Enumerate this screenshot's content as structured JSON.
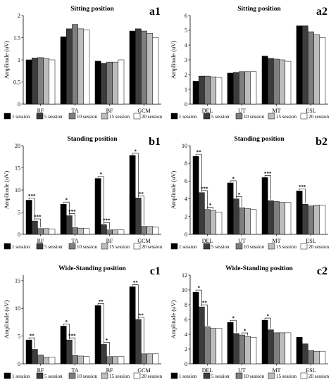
{
  "series_colors": [
    "#000000",
    "#3c3c3c",
    "#7f7f7f",
    "#bdbdbd",
    "#ffffff"
  ],
  "chart_data": [
    {
      "id": "a1",
      "type": "bar",
      "panel_label": "a1",
      "title": "Sitting position",
      "ylabel": "Amplitude (uV)",
      "ylim": [
        0,
        2
      ],
      "yticks": [
        0,
        0.5,
        1,
        1.5,
        2
      ],
      "ytick_labels": [
        "0",
        "0.5",
        "1",
        "1.5",
        "2"
      ],
      "categories": [
        "RF",
        "TA",
        "BF",
        "GCM"
      ],
      "series": [
        {
          "name": "1 session",
          "values": [
            1.0,
            1.52,
            0.97,
            1.65
          ]
        },
        {
          "name": "5 session",
          "values": [
            1.04,
            1.7,
            0.92,
            1.7
          ]
        },
        {
          "name": "10 session",
          "values": [
            1.05,
            1.8,
            0.95,
            1.65
          ]
        },
        {
          "name": "15 session",
          "values": [
            1.03,
            1.7,
            0.95,
            1.6
          ]
        },
        {
          "name": "20 session",
          "values": [
            1.0,
            1.67,
            1.0,
            1.5
          ]
        }
      ],
      "annotations": [],
      "legend": "bottom"
    },
    {
      "id": "a2",
      "type": "bar",
      "panel_label": "a2",
      "title": "Sitting position",
      "ylabel": "Amplitude (uV)",
      "ylim": [
        0,
        6
      ],
      "yticks": [
        0,
        1,
        2,
        3,
        4,
        5,
        6
      ],
      "ytick_labels": [
        "0",
        "1",
        "2",
        "3",
        "4",
        "5",
        "6"
      ],
      "categories": [
        "DEL",
        "UT",
        "MT",
        "ESL"
      ],
      "series": [
        {
          "name": "1 session",
          "values": [
            1.55,
            2.1,
            3.25,
            5.3
          ]
        },
        {
          "name": "5 session",
          "values": [
            1.9,
            2.15,
            3.1,
            5.3
          ]
        },
        {
          "name": "10 session",
          "values": [
            1.9,
            2.2,
            3.05,
            4.9
          ]
        },
        {
          "name": "15 session",
          "values": [
            1.85,
            2.2,
            3.0,
            4.7
          ]
        },
        {
          "name": "20 session",
          "values": [
            1.8,
            2.2,
            2.9,
            4.5
          ]
        }
      ],
      "annotations": [],
      "legend": "bottom"
    },
    {
      "id": "b1",
      "type": "bar",
      "panel_label": "b1",
      "title": "Standing position",
      "ylabel": "Amplitude (uV)",
      "ylim": [
        0,
        20
      ],
      "yticks": [
        0,
        5,
        10,
        15,
        20
      ],
      "ytick_labels": [
        "0",
        "5",
        "10",
        "15",
        "20"
      ],
      "categories": [
        "RF",
        "TA",
        "BF",
        "GCM"
      ],
      "series": [
        {
          "name": "1 session",
          "values": [
            7.7,
            6.8,
            12.6,
            17.8
          ]
        },
        {
          "name": "5 session",
          "values": [
            3.0,
            4.2,
            2.2,
            8.2
          ]
        },
        {
          "name": "10 session",
          "values": [
            1.3,
            1.5,
            1.0,
            1.8
          ]
        },
        {
          "name": "15 session",
          "values": [
            1.3,
            1.4,
            1.0,
            1.8
          ]
        },
        {
          "name": "20 session",
          "values": [
            1.2,
            1.3,
            1.0,
            1.6
          ]
        }
      ],
      "annotations": [
        {
          "category": 0,
          "from": 0,
          "to": 1,
          "label": "***"
        },
        {
          "category": 0,
          "from": 1,
          "to": 2,
          "label": "***"
        },
        {
          "category": 1,
          "from": 0,
          "to": 1,
          "label": "*"
        },
        {
          "category": 1,
          "from": 1,
          "to": 2,
          "label": "***"
        },
        {
          "category": 2,
          "from": 0,
          "to": 1,
          "label": "*"
        },
        {
          "category": 2,
          "from": 1,
          "to": 2,
          "label": "***"
        },
        {
          "category": 3,
          "from": 0,
          "to": 1,
          "label": "*"
        },
        {
          "category": 3,
          "from": 1,
          "to": 2,
          "label": "**"
        }
      ],
      "legend": "bottom"
    },
    {
      "id": "b2",
      "type": "bar",
      "panel_label": "b2",
      "title": "Standing position",
      "ylabel": "Amplitude (uV)",
      "ylim": [
        0,
        10
      ],
      "yticks": [
        0,
        2,
        4,
        6,
        8,
        10
      ],
      "ytick_labels": [
        "0",
        "2",
        "4",
        "6",
        "8",
        "10"
      ],
      "categories": [
        "DEL",
        "UT",
        "MT",
        "ESL"
      ],
      "series": [
        {
          "name": "1 session",
          "values": [
            8.8,
            5.8,
            6.4,
            4.9
          ]
        },
        {
          "name": "5 session",
          "values": [
            4.7,
            4.0,
            3.8,
            3.4
          ]
        },
        {
          "name": "10 session",
          "values": [
            2.8,
            3.0,
            3.7,
            3.2
          ]
        },
        {
          "name": "15 session",
          "values": [
            2.7,
            2.9,
            3.6,
            3.3
          ]
        },
        {
          "name": "20 session",
          "values": [
            2.5,
            2.8,
            3.6,
            3.3
          ]
        }
      ],
      "annotations": [
        {
          "category": 0,
          "from": 0,
          "to": 1,
          "label": "**"
        },
        {
          "category": 0,
          "from": 1,
          "to": 2,
          "label": "***"
        },
        {
          "category": 0,
          "from": 2,
          "to": 3,
          "label": "*"
        },
        {
          "category": 1,
          "from": 0,
          "to": 1,
          "label": "*"
        },
        {
          "category": 1,
          "from": 1,
          "to": 2,
          "label": "*"
        },
        {
          "category": 2,
          "from": 0,
          "to": 1,
          "label": "***"
        },
        {
          "category": 3,
          "from": 0,
          "to": 1,
          "label": "***"
        }
      ],
      "legend": "bottom"
    },
    {
      "id": "c1",
      "type": "bar",
      "panel_label": "c1",
      "title": "Wide-Standing position",
      "ylabel": "Amplitude (uV)",
      "ylim": [
        0,
        16
      ],
      "yticks": [
        0,
        5,
        10,
        15
      ],
      "ytick_labels": [
        "0",
        "5",
        "10",
        "15"
      ],
      "categories": [
        "RF",
        "TA",
        "BF",
        "GCM"
      ],
      "series": [
        {
          "name": "1 session",
          "values": [
            4.3,
            6.8,
            10.5,
            13.9
          ]
        },
        {
          "name": "5 session",
          "values": [
            2.6,
            4.3,
            3.5,
            8.0
          ]
        },
        {
          "name": "10 session",
          "values": [
            1.6,
            1.5,
            1.3,
            1.8
          ]
        },
        {
          "name": "15 session",
          "values": [
            1.2,
            1.4,
            1.3,
            1.8
          ]
        },
        {
          "name": "20 session",
          "values": [
            1.2,
            1.3,
            1.3,
            1.8
          ]
        }
      ],
      "annotations": [
        {
          "category": 0,
          "from": 0,
          "to": 1,
          "label": "**"
        },
        {
          "category": 1,
          "from": 0,
          "to": 1,
          "label": "*"
        },
        {
          "category": 1,
          "from": 1,
          "to": 2,
          "label": "***"
        },
        {
          "category": 2,
          "from": 0,
          "to": 1,
          "label": "**"
        },
        {
          "category": 2,
          "from": 1,
          "to": 2,
          "label": "*"
        },
        {
          "category": 3,
          "from": 0,
          "to": 1,
          "label": "**"
        },
        {
          "category": 3,
          "from": 1,
          "to": 2,
          "label": "**"
        }
      ],
      "legend": "bottom"
    },
    {
      "id": "c2",
      "type": "bar",
      "panel_label": "c2",
      "title": "Wide-Standing position",
      "ylabel": "Amplitude (uV)",
      "ylim": [
        0,
        12
      ],
      "yticks": [
        0,
        2,
        4,
        6,
        8,
        10,
        12
      ],
      "ytick_labels": [
        "0",
        "2",
        "4",
        "6",
        "8",
        "10",
        "12"
      ],
      "categories": [
        "DEL",
        "UT",
        "MT",
        "ESL"
      ],
      "series": [
        {
          "name": "1 session",
          "values": [
            9.7,
            5.6,
            5.9,
            3.6
          ]
        },
        {
          "name": "5 session",
          "values": [
            7.7,
            4.1,
            4.6,
            2.7
          ]
        },
        {
          "name": "10 session",
          "values": [
            5.0,
            3.9,
            4.2,
            1.8
          ]
        },
        {
          "name": "15 session",
          "values": [
            4.8,
            3.7,
            4.2,
            1.7
          ]
        },
        {
          "name": "20 session",
          "values": [
            4.8,
            3.6,
            4.2,
            1.7
          ]
        }
      ],
      "annotations": [
        {
          "category": 0,
          "from": 0,
          "to": 1,
          "label": "*"
        },
        {
          "category": 0,
          "from": 1,
          "to": 2,
          "label": "**"
        },
        {
          "category": 1,
          "from": 0,
          "to": 1,
          "label": "*"
        },
        {
          "category": 1,
          "from": 2,
          "to": 3,
          "label": "*"
        },
        {
          "category": 2,
          "from": 0,
          "to": 1,
          "label": "*"
        }
      ],
      "legend": "bottom"
    }
  ]
}
